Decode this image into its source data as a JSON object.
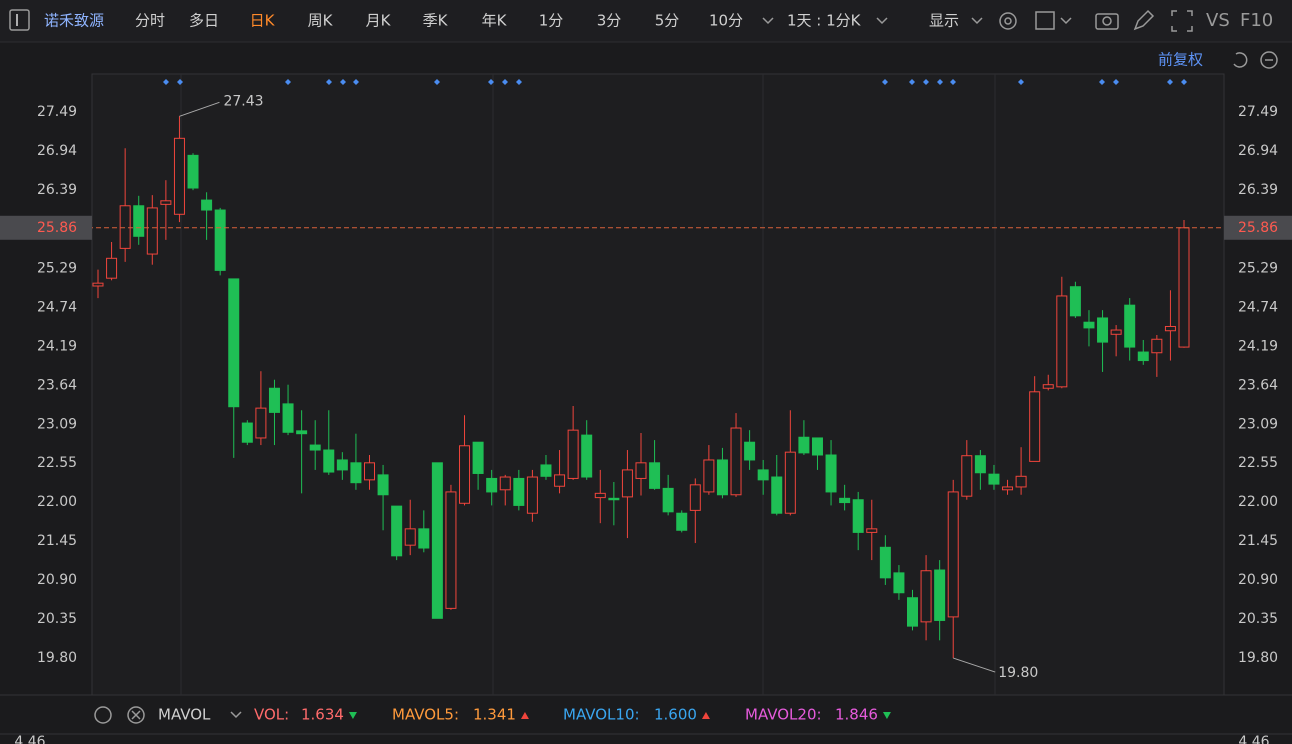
{
  "toolbar": {
    "stock": "诺禾致源",
    "periods": [
      "分时",
      "多日",
      "日K",
      "周K",
      "月K",
      "季K",
      "年K",
      "1分",
      "3分",
      "5分",
      "10分"
    ],
    "active": "日K",
    "interval": "1天 : 1分K",
    "display": "显示",
    "vs": "VS",
    "f10": "F10"
  },
  "adjust": "前复权",
  "chart_data": {
    "type": "candlestick",
    "open": [
      25.04,
      25.15,
      25.57,
      26.17,
      25.49,
      26.19,
      26.05,
      26.88,
      26.25,
      26.11,
      25.14,
      23.11,
      22.9,
      23.6,
      23.38,
      23.0,
      22.8,
      22.73,
      22.59,
      22.55,
      22.31,
      22.38,
      21.94,
      21.39,
      21.62,
      22.55,
      20.5,
      21.98,
      22.84,
      22.33,
      22.17,
      22.33,
      21.84,
      22.52,
      22.22,
      22.33,
      22.94,
      22.06,
      22.05,
      22.07,
      22.33,
      22.55,
      22.19,
      21.84,
      21.88,
      22.14,
      22.59,
      22.1,
      22.84,
      22.45,
      22.35,
      21.84,
      22.91,
      22.9,
      22.66,
      22.05,
      22.03,
      21.57,
      21.36,
      21.0,
      20.65,
      20.31,
      21.04,
      20.38,
      22.08,
      22.65,
      22.39,
      22.17,
      22.21,
      22.57,
      23.6,
      23.62,
      25.03,
      24.53,
      24.59,
      24.36,
      24.77,
      24.11,
      24.1,
      24.41,
      24.18
    ],
    "high": [
      25.27,
      25.66,
      26.98,
      26.31,
      26.32,
      26.53,
      27.43,
      26.91,
      26.36,
      26.14,
      25.14,
      23.15,
      23.84,
      23.72,
      23.65,
      23.29,
      23.15,
      23.29,
      22.7,
      22.96,
      22.66,
      22.52,
      21.94,
      22.03,
      21.88,
      22.55,
      22.24,
      23.22,
      22.84,
      22.45,
      22.38,
      22.45,
      22.45,
      22.66,
      22.73,
      23.35,
      23.15,
      22.45,
      22.28,
      22.73,
      22.97,
      22.87,
      22.38,
      21.88,
      22.33,
      22.8,
      22.76,
      23.25,
      23.01,
      22.59,
      22.66,
      23.29,
      23.15,
      22.9,
      22.87,
      22.24,
      22.14,
      22.03,
      21.53,
      21.11,
      20.76,
      21.25,
      21.18,
      22.31,
      22.87,
      22.73,
      22.52,
      22.31,
      22.77,
      23.77,
      23.79,
      25.17,
      25.1,
      24.7,
      24.7,
      24.49,
      24.87,
      24.28,
      24.35,
      24.98,
      25.97
    ],
    "low": [
      24.87,
      25.12,
      25.38,
      25.62,
      25.34,
      25.69,
      25.94,
      26.39,
      25.69,
      25.19,
      22.62,
      22.8,
      22.8,
      22.8,
      22.94,
      22.12,
      22.45,
      22.38,
      22.31,
      22.17,
      22.17,
      21.6,
      21.18,
      21.25,
      21.29,
      20.36,
      20.48,
      21.95,
      22.17,
      21.95,
      21.95,
      21.88,
      21.72,
      22.31,
      22.12,
      22.31,
      22.31,
      21.7,
      21.67,
      21.49,
      22.09,
      22.17,
      21.81,
      21.57,
      21.42,
      22.1,
      22.05,
      22.07,
      22.45,
      22.1,
      21.81,
      21.81,
      22.66,
      22.45,
      21.95,
      21.88,
      21.32,
      21.18,
      20.83,
      20.62,
      20.19,
      20.05,
      20.05,
      19.8,
      22.03,
      22.17,
      22.17,
      22.1,
      22.1,
      22.57,
      23.57,
      23.6,
      24.59,
      24.19,
      23.83,
      24.05,
      23.99,
      23.93,
      23.76,
      23.99,
      24.17
    ],
    "close": [
      25.08,
      25.43,
      26.17,
      25.74,
      26.14,
      26.24,
      27.12,
      26.42,
      26.11,
      25.26,
      23.34,
      22.84,
      23.32,
      23.26,
      22.98,
      22.96,
      22.73,
      22.42,
      22.45,
      22.27,
      22.55,
      22.1,
      21.24,
      21.62,
      21.35,
      20.36,
      22.14,
      22.79,
      22.4,
      22.14,
      22.35,
      21.95,
      22.35,
      22.36,
      22.38,
      23.01,
      22.35,
      22.12,
      22.03,
      22.45,
      22.55,
      22.19,
      21.86,
      21.6,
      22.24,
      22.59,
      22.1,
      23.04,
      22.59,
      22.31,
      21.84,
      22.7,
      22.69,
      22.66,
      22.14,
      21.99,
      21.57,
      21.62,
      20.93,
      20.72,
      20.25,
      21.03,
      20.33,
      22.14,
      22.65,
      22.41,
      22.25,
      22.21,
      22.36,
      23.55,
      23.65,
      24.9,
      24.62,
      24.45,
      24.25,
      24.42,
      24.18,
      23.99,
      24.29,
      24.47,
      25.86
    ],
    "up_color": "#f0453c",
    "down_color": "#1fbf55",
    "ylim": [
      19.28,
      27.73
    ],
    "yticks": [
      27.49,
      26.94,
      26.39,
      25.29,
      24.74,
      24.19,
      23.64,
      23.09,
      22.55,
      {
        "value": 22,
        "label": "22.00"
      },
      21.45,
      {
        "value": 20.9,
        "label": "20.90"
      },
      20.35,
      {
        "value": 19.8,
        "label": "19.80"
      }
    ],
    "current_price": 25.86,
    "high_label": "27.43",
    "low_label": "19.80"
  },
  "indicator": {
    "name": "MAVOL",
    "axis_top": "4.46",
    "items": [
      {
        "label": "VOL:",
        "value": "1.634",
        "color": "#ff6b6b",
        "trend": "down"
      },
      {
        "label": "MAVOL5:",
        "value": "1.341",
        "color": "#ff9a3c",
        "trend": "up"
      },
      {
        "label": "MAVOL10:",
        "value": "1.600",
        "color": "#3aa6f0",
        "trend": "up"
      },
      {
        "label": "MAVOL20:",
        "value": "1.846",
        "color": "#e65bdc",
        "trend": "down"
      }
    ]
  }
}
